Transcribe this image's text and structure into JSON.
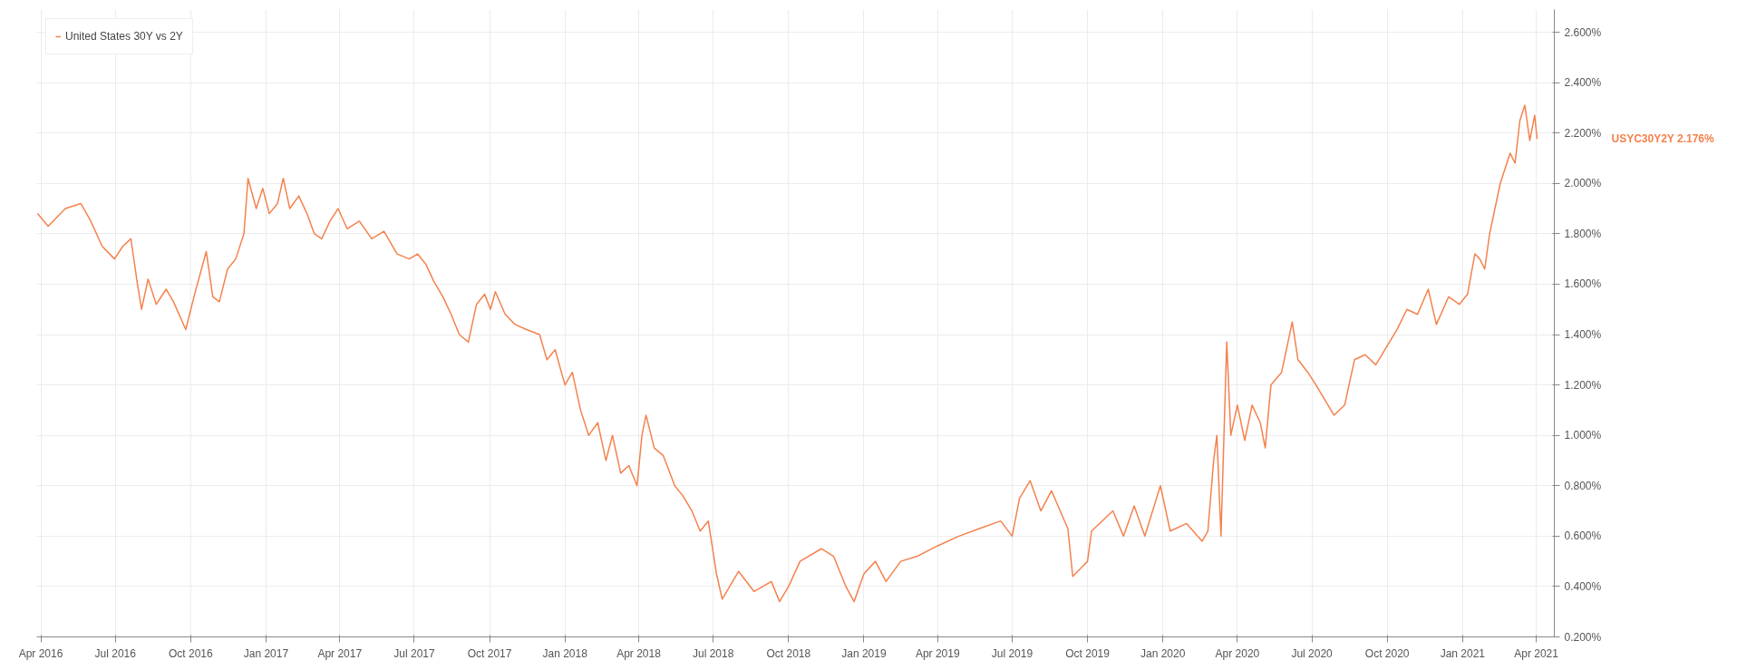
{
  "chart_data": {
    "type": "line",
    "legend": "top left",
    "grid": true,
    "marker": "none",
    "line_style": "solid",
    "xlim": [
      "2016-03-27",
      "2021-04-23"
    ],
    "ylim": [
      0.2,
      2.69
    ],
    "xticks": [
      {
        "value": "2016-04-01",
        "label": "Apr 2016"
      },
      {
        "value": "2016-07-01",
        "label": "Jul 2016"
      },
      {
        "value": "2016-10-01",
        "label": "Oct 2016"
      },
      {
        "value": "2017-01-01",
        "label": "Jan 2017"
      },
      {
        "value": "2017-04-01",
        "label": "Apr 2017"
      },
      {
        "value": "2017-07-01",
        "label": "Jul 2017"
      },
      {
        "value": "2017-10-01",
        "label": "Oct 2017"
      },
      {
        "value": "2018-01-01",
        "label": "Jan 2018"
      },
      {
        "value": "2018-04-01",
        "label": "Apr 2018"
      },
      {
        "value": "2018-07-01",
        "label": "Jul 2018"
      },
      {
        "value": "2018-10-01",
        "label": "Oct 2018"
      },
      {
        "value": "2019-01-01",
        "label": "Jan 2019"
      },
      {
        "value": "2019-04-01",
        "label": "Apr 2019"
      },
      {
        "value": "2019-07-01",
        "label": "Jul 2019"
      },
      {
        "value": "2019-10-01",
        "label": "Oct 2019"
      },
      {
        "value": "2020-01-01",
        "label": "Jan 2020"
      },
      {
        "value": "2020-04-01",
        "label": "Apr 2020"
      },
      {
        "value": "2020-07-01",
        "label": "Jul 2020"
      },
      {
        "value": "2020-10-01",
        "label": "Oct 2020"
      },
      {
        "value": "2021-01-01",
        "label": "Jan 2021"
      },
      {
        "value": "2021-04-01",
        "label": "Apr 2021"
      }
    ],
    "yticks": [
      {
        "value": 0.2,
        "label": "0.200%"
      },
      {
        "value": 0.4,
        "label": "0.400%"
      },
      {
        "value": 0.6,
        "label": "0.600%"
      },
      {
        "value": 0.8,
        "label": "0.800%"
      },
      {
        "value": 1.0,
        "label": "1.000%"
      },
      {
        "value": 1.2,
        "label": "1.200%"
      },
      {
        "value": 1.4,
        "label": "1.400%"
      },
      {
        "value": 1.6,
        "label": "1.600%"
      },
      {
        "value": 1.8,
        "label": "1.800%"
      },
      {
        "value": 2.0,
        "label": "2.000%"
      },
      {
        "value": 2.2,
        "label": "2.200%"
      },
      {
        "value": 2.4,
        "label": "2.400%"
      },
      {
        "value": 2.6,
        "label": "2.600%"
      }
    ],
    "annotations": [
      "USYC30Y2Y   2.176%"
    ],
    "x": [
      "2016-03-28",
      "2016-04-10",
      "2016-05-01",
      "2016-05-20",
      "2016-06-01",
      "2016-06-15",
      "2016-06-30",
      "2016-07-10",
      "2016-07-20",
      "2016-07-28",
      "2016-08-02",
      "2016-08-10",
      "2016-08-20",
      "2016-09-01",
      "2016-09-10",
      "2016-09-25",
      "2016-10-05",
      "2016-10-20",
      "2016-10-28",
      "2016-11-05",
      "2016-11-15",
      "2016-11-25",
      "2016-12-05",
      "2016-12-10",
      "2016-12-20",
      "2016-12-28",
      "2017-01-05",
      "2017-01-15",
      "2017-01-22",
      "2017-01-30",
      "2017-02-10",
      "2017-02-20",
      "2017-03-01",
      "2017-03-10",
      "2017-03-20",
      "2017-03-30",
      "2017-04-10",
      "2017-04-25",
      "2017-05-10",
      "2017-05-25",
      "2017-06-10",
      "2017-06-25",
      "2017-07-05",
      "2017-07-15",
      "2017-07-25",
      "2017-08-05",
      "2017-08-15",
      "2017-08-25",
      "2017-09-05",
      "2017-09-15",
      "2017-09-25",
      "2017-10-02",
      "2017-10-08",
      "2017-10-20",
      "2017-11-01",
      "2017-11-15",
      "2017-12-01",
      "2017-12-10",
      "2017-12-20",
      "2018-01-01",
      "2018-01-10",
      "2018-01-20",
      "2018-01-30",
      "2018-02-10",
      "2018-02-20",
      "2018-02-28",
      "2018-03-10",
      "2018-03-20",
      "2018-03-30",
      "2018-04-05",
      "2018-04-10",
      "2018-04-20",
      "2018-05-01",
      "2018-05-15",
      "2018-05-25",
      "2018-06-05",
      "2018-06-15",
      "2018-06-25",
      "2018-07-05",
      "2018-07-12",
      "2018-08-01",
      "2018-08-20",
      "2018-09-10",
      "2018-09-20",
      "2018-10-01",
      "2018-10-15",
      "2018-11-10",
      "2018-11-25",
      "2018-12-10",
      "2018-12-20",
      "2019-01-01",
      "2019-01-15",
      "2019-01-28",
      "2019-02-15",
      "2019-03-07",
      "2019-03-31",
      "2019-04-27",
      "2019-05-22",
      "2019-06-17",
      "2019-07-01",
      "2019-07-10",
      "2019-07-23",
      "2019-08-05",
      "2019-08-18",
      "2019-09-07",
      "2019-09-13",
      "2019-09-25",
      "2019-10-01",
      "2019-10-06",
      "2019-11-01",
      "2019-11-14",
      "2019-11-27",
      "2019-12-10",
      "2019-12-29",
      "2020-01-10",
      "2020-01-30",
      "2020-02-18",
      "2020-02-25",
      "2020-03-03",
      "2020-03-07",
      "2020-03-12",
      "2020-03-19",
      "2020-03-24",
      "2020-04-01",
      "2020-04-10",
      "2020-04-19",
      "2020-04-29",
      "2020-05-05",
      "2020-05-12",
      "2020-05-25",
      "2020-06-07",
      "2020-06-14",
      "2020-06-26",
      "2020-07-06",
      "2020-07-15",
      "2020-07-28",
      "2020-08-10",
      "2020-08-22",
      "2020-09-04",
      "2020-09-17",
      "2020-09-30",
      "2020-10-13",
      "2020-10-25",
      "2020-11-07",
      "2020-11-20",
      "2020-11-30",
      "2020-12-15",
      "2020-12-28",
      "2021-01-07",
      "2021-01-16",
      "2021-01-22",
      "2021-01-28",
      "2021-02-03",
      "2021-02-16",
      "2021-02-28",
      "2021-03-06",
      "2021-03-12",
      "2021-03-18",
      "2021-03-24",
      "2021-03-30",
      "2021-04-02"
    ],
    "series": [
      {
        "name": "United States 30Y vs 2Y",
        "color": "#f4824d",
        "values": [
          1.88,
          1.83,
          1.9,
          1.92,
          1.85,
          1.75,
          1.7,
          1.75,
          1.78,
          1.6,
          1.5,
          1.62,
          1.52,
          1.58,
          1.53,
          1.42,
          1.55,
          1.73,
          1.55,
          1.53,
          1.66,
          1.7,
          1.8,
          2.02,
          1.9,
          1.98,
          1.88,
          1.92,
          2.02,
          1.9,
          1.95,
          1.88,
          1.8,
          1.78,
          1.85,
          1.9,
          1.82,
          1.85,
          1.78,
          1.81,
          1.72,
          1.7,
          1.72,
          1.68,
          1.61,
          1.55,
          1.48,
          1.4,
          1.37,
          1.52,
          1.56,
          1.5,
          1.57,
          1.48,
          1.44,
          1.42,
          1.4,
          1.3,
          1.34,
          1.2,
          1.25,
          1.1,
          1.0,
          1.05,
          0.9,
          1.0,
          0.85,
          0.88,
          0.8,
          1.0,
          1.08,
          0.95,
          0.92,
          0.8,
          0.76,
          0.7,
          0.62,
          0.66,
          0.45,
          0.35,
          0.46,
          0.38,
          0.42,
          0.34,
          0.4,
          0.5,
          0.55,
          0.52,
          0.4,
          0.34,
          0.45,
          0.5,
          0.42,
          0.5,
          0.52,
          0.56,
          0.6,
          0.63,
          0.66,
          0.6,
          0.75,
          0.82,
          0.7,
          0.78,
          0.63,
          0.44,
          0.48,
          0.5,
          0.62,
          0.7,
          0.6,
          0.72,
          0.6,
          0.8,
          0.62,
          0.65,
          0.58,
          0.62,
          0.9,
          1.0,
          0.6,
          1.37,
          1.0,
          1.12,
          0.98,
          1.12,
          1.05,
          0.95,
          1.2,
          1.25,
          1.45,
          1.3,
          1.25,
          1.2,
          1.15,
          1.08,
          1.12,
          1.3,
          1.32,
          1.28,
          1.35,
          1.42,
          1.5,
          1.48,
          1.58,
          1.44,
          1.55,
          1.52,
          1.56,
          1.72,
          1.7,
          1.66,
          1.8,
          2.0,
          2.12,
          2.08,
          2.25,
          2.31,
          2.17,
          2.27,
          2.176
        ]
      }
    ]
  }
}
